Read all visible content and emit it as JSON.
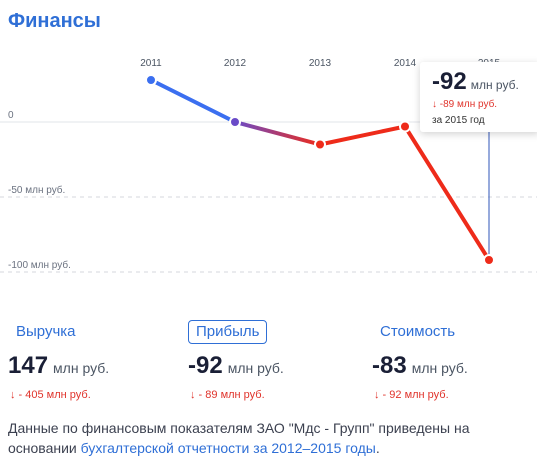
{
  "title": "Финансы",
  "chart_data": {
    "type": "line",
    "x": [
      "2011",
      "2012",
      "2013",
      "2014",
      "2015"
    ],
    "y": [
      28,
      0,
      -15,
      -3,
      -92
    ],
    "y_tick_labels": [
      {
        "value": 0,
        "label": "0"
      },
      {
        "value": -50,
        "label": "-50 млн руб."
      },
      {
        "value": -100,
        "label": "-100 млн руб."
      }
    ],
    "ylim": [
      -110,
      28
    ],
    "grid": "horizontal dashed",
    "colors": {
      "positive": "#3b6ff0",
      "negative": "#ee2b1a"
    }
  },
  "tooltip": {
    "value": "-92",
    "unit": "млн руб.",
    "change": "↓ -89 млн руб.",
    "period": "за 2015 год"
  },
  "metrics": [
    {
      "label": "Выручка",
      "value": "147",
      "unit": "млн руб.",
      "change": "↓ - 405 млн руб.",
      "active": false
    },
    {
      "label": "Прибыль",
      "value": "-92",
      "unit": "млн руб.",
      "change": "↓ - 89 млн руб.",
      "active": true
    },
    {
      "label": "Стоимость",
      "value": "-83",
      "unit": "млн руб.",
      "change": "↓ - 92 млн руб.",
      "active": false
    }
  ],
  "footer": {
    "text": "Данные по финансовым показателям ЗАО \"Мдс - Групп\" приведены на основании ",
    "link": "бухгалтерской отчетности за 2012–2015 годы",
    "end": "."
  }
}
